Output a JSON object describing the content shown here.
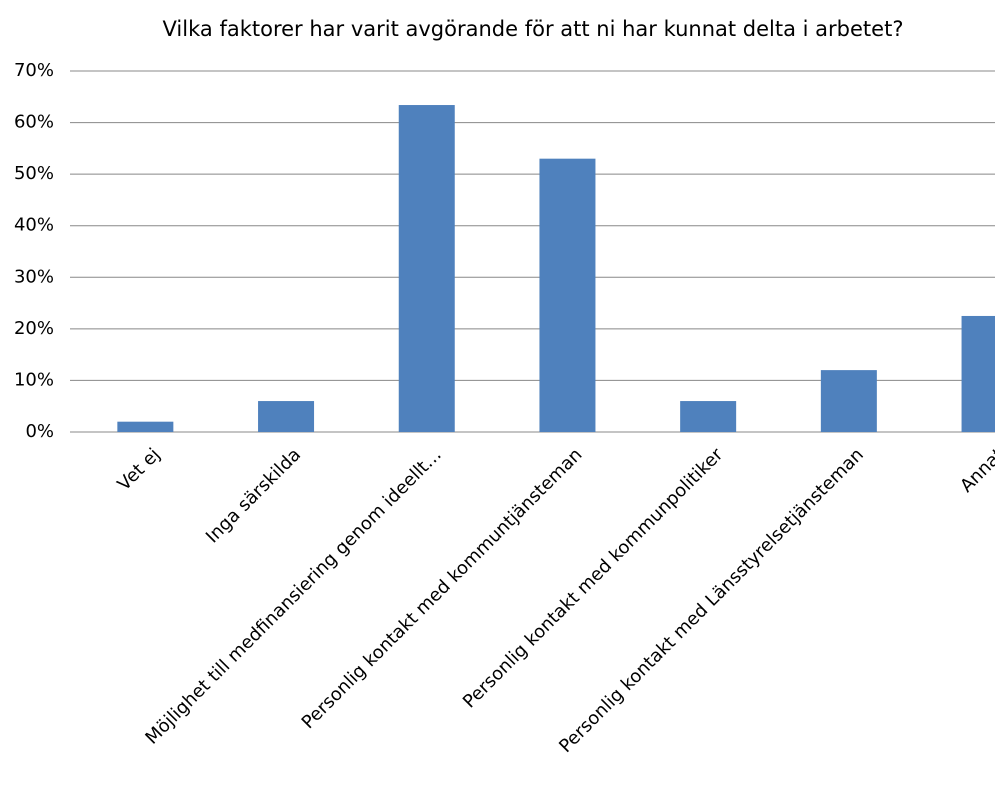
{
  "chart_data": {
    "type": "bar",
    "title": "Vilka faktorer har varit avgörande för att ni har kunnat delta i arbetet?",
    "categories": [
      "Vet ej",
      "Inga särskilda",
      "Möjlighet till medfinansiering genom ideellt…",
      "Personlig kontakt med kommuntjänsteman",
      "Personlig kontakt med kommunpolitiker",
      "Personlig kontakt med Länsstyrelsetjänsteman",
      "Annat"
    ],
    "values": [
      2,
      6,
      63.4,
      53,
      6,
      12,
      22.5
    ],
    "color": "#4f81bd",
    "ylim": [
      0,
      70
    ],
    "yticks": [
      {
        "value": 0,
        "label": "0%"
      },
      {
        "value": 10,
        "label": "10%"
      },
      {
        "value": 20,
        "label": "20%"
      },
      {
        "value": 30,
        "label": "30%"
      },
      {
        "value": 40,
        "label": "40%"
      },
      {
        "value": 50,
        "label": "50%"
      },
      {
        "value": 60,
        "label": "60%"
      },
      {
        "value": 70,
        "label": "70%"
      }
    ],
    "grid": true
  }
}
